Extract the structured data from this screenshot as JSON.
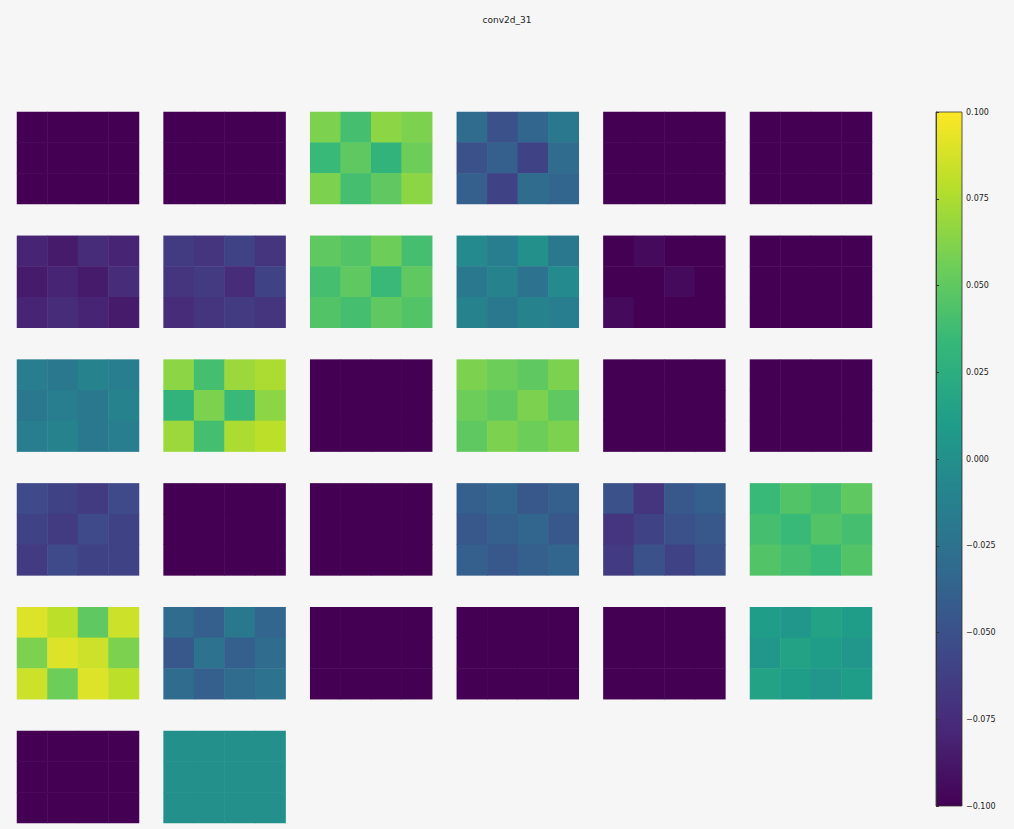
{
  "chart_data": {
    "type": "heatmap_grid",
    "title": "conv2d_31",
    "panels": [
      [
        [
          -0.1,
          -0.1,
          -0.1,
          -0.1
        ],
        [
          -0.1,
          -0.1,
          -0.1,
          -0.1
        ],
        [
          -0.1,
          -0.1,
          -0.1,
          -0.1
        ]
      ],
      [
        [
          -0.1,
          -0.1,
          -0.1,
          -0.1
        ],
        [
          -0.1,
          -0.1,
          -0.1,
          -0.1
        ],
        [
          -0.1,
          -0.1,
          -0.1,
          -0.1
        ]
      ],
      [
        [
          0.06,
          0.04,
          0.065,
          0.06
        ],
        [
          0.035,
          0.05,
          0.03,
          0.055
        ],
        [
          0.06,
          0.04,
          0.05,
          0.065
        ]
      ],
      [
        [
          -0.03,
          -0.05,
          -0.035,
          -0.02
        ],
        [
          -0.05,
          -0.04,
          -0.06,
          -0.03
        ],
        [
          -0.04,
          -0.06,
          -0.03,
          -0.035
        ]
      ],
      [
        [
          -0.1,
          -0.1,
          -0.1,
          -0.1
        ],
        [
          -0.1,
          -0.1,
          -0.1,
          -0.1
        ],
        [
          -0.1,
          -0.1,
          -0.1,
          -0.1
        ]
      ],
      [
        [
          -0.1,
          -0.1,
          -0.1,
          -0.1
        ],
        [
          -0.1,
          -0.1,
          -0.1,
          -0.1
        ],
        [
          -0.1,
          -0.1,
          -0.1,
          -0.1
        ]
      ],
      [
        [
          -0.08,
          -0.085,
          -0.075,
          -0.08
        ],
        [
          -0.085,
          -0.08,
          -0.085,
          -0.075
        ],
        [
          -0.08,
          -0.075,
          -0.08,
          -0.085
        ]
      ],
      [
        [
          -0.065,
          -0.07,
          -0.06,
          -0.07
        ],
        [
          -0.07,
          -0.065,
          -0.075,
          -0.06
        ],
        [
          -0.075,
          -0.07,
          -0.065,
          -0.07
        ]
      ],
      [
        [
          0.05,
          0.045,
          0.055,
          0.04
        ],
        [
          0.04,
          0.05,
          0.035,
          0.05
        ],
        [
          0.045,
          0.04,
          0.05,
          0.045
        ]
      ],
      [
        [
          -0.005,
          -0.015,
          0.0,
          -0.02
        ],
        [
          -0.02,
          -0.01,
          -0.025,
          -0.005
        ],
        [
          -0.01,
          -0.02,
          -0.01,
          -0.015
        ]
      ],
      [
        [
          -0.1,
          -0.095,
          -0.1,
          -0.1
        ],
        [
          -0.1,
          -0.1,
          -0.095,
          -0.1
        ],
        [
          -0.095,
          -0.1,
          -0.1,
          -0.1
        ]
      ],
      [
        [
          -0.1,
          -0.1,
          -0.1,
          -0.1
        ],
        [
          -0.1,
          -0.1,
          -0.1,
          -0.1
        ],
        [
          -0.1,
          -0.1,
          -0.1,
          -0.1
        ]
      ],
      [
        [
          -0.015,
          -0.02,
          -0.01,
          -0.015
        ],
        [
          -0.02,
          -0.015,
          -0.02,
          -0.01
        ],
        [
          -0.015,
          -0.01,
          -0.02,
          -0.015
        ]
      ],
      [
        [
          0.065,
          0.04,
          0.07,
          0.075
        ],
        [
          0.03,
          0.06,
          0.035,
          0.065
        ],
        [
          0.07,
          0.04,
          0.075,
          0.08
        ]
      ],
      [
        [
          -0.1,
          -0.1,
          -0.1,
          -0.1
        ],
        [
          -0.1,
          -0.1,
          -0.1,
          -0.1
        ],
        [
          -0.1,
          -0.1,
          -0.1,
          -0.1
        ]
      ],
      [
        [
          0.06,
          0.055,
          0.05,
          0.06
        ],
        [
          0.055,
          0.05,
          0.06,
          0.05
        ],
        [
          0.05,
          0.06,
          0.055,
          0.06
        ]
      ],
      [
        [
          -0.1,
          -0.1,
          -0.1,
          -0.1
        ],
        [
          -0.1,
          -0.1,
          -0.1,
          -0.1
        ],
        [
          -0.1,
          -0.1,
          -0.1,
          -0.1
        ]
      ],
      [
        [
          -0.1,
          -0.1,
          -0.1,
          -0.1
        ],
        [
          -0.1,
          -0.1,
          -0.1,
          -0.1
        ],
        [
          -0.1,
          -0.1,
          -0.1,
          -0.1
        ]
      ],
      [
        [
          -0.055,
          -0.06,
          -0.065,
          -0.055
        ],
        [
          -0.06,
          -0.065,
          -0.055,
          -0.06
        ],
        [
          -0.065,
          -0.055,
          -0.06,
          -0.06
        ]
      ],
      [
        [
          -0.1,
          -0.1,
          -0.1,
          -0.1
        ],
        [
          -0.1,
          -0.1,
          -0.1,
          -0.1
        ],
        [
          -0.1,
          -0.1,
          -0.1,
          -0.1
        ]
      ],
      [
        [
          -0.1,
          -0.1,
          -0.1,
          -0.1
        ],
        [
          -0.1,
          -0.1,
          -0.1,
          -0.1
        ],
        [
          -0.1,
          -0.1,
          -0.1,
          -0.1
        ]
      ],
      [
        [
          -0.04,
          -0.035,
          -0.045,
          -0.04
        ],
        [
          -0.045,
          -0.04,
          -0.035,
          -0.045
        ],
        [
          -0.04,
          -0.045,
          -0.04,
          -0.035
        ]
      ],
      [
        [
          -0.05,
          -0.07,
          -0.045,
          -0.04
        ],
        [
          -0.07,
          -0.06,
          -0.05,
          -0.045
        ],
        [
          -0.065,
          -0.05,
          -0.06,
          -0.05
        ]
      ],
      [
        [
          0.035,
          0.045,
          0.04,
          0.05
        ],
        [
          0.04,
          0.035,
          0.045,
          0.04
        ],
        [
          0.045,
          0.04,
          0.035,
          0.045
        ]
      ],
      [
        [
          0.09,
          0.08,
          0.05,
          0.085
        ],
        [
          0.06,
          0.09,
          0.085,
          0.06
        ],
        [
          0.085,
          0.055,
          0.09,
          0.08
        ]
      ],
      [
        [
          -0.03,
          -0.04,
          -0.02,
          -0.035
        ],
        [
          -0.045,
          -0.025,
          -0.04,
          -0.03
        ],
        [
          -0.03,
          -0.04,
          -0.03,
          -0.025
        ]
      ],
      [
        [
          -0.1,
          -0.1,
          -0.1,
          -0.1
        ],
        [
          -0.1,
          -0.1,
          -0.1,
          -0.1
        ],
        [
          -0.1,
          -0.1,
          -0.1,
          -0.1
        ]
      ],
      [
        [
          -0.1,
          -0.1,
          -0.1,
          -0.1
        ],
        [
          -0.1,
          -0.1,
          -0.1,
          -0.1
        ],
        [
          -0.1,
          -0.1,
          -0.1,
          -0.1
        ]
      ],
      [
        [
          -0.1,
          -0.1,
          -0.1,
          -0.1
        ],
        [
          -0.1,
          -0.1,
          -0.1,
          -0.1
        ],
        [
          -0.1,
          -0.1,
          -0.1,
          -0.1
        ]
      ],
      [
        [
          0.01,
          0.005,
          0.015,
          0.01
        ],
        [
          0.005,
          0.015,
          0.01,
          0.005
        ],
        [
          0.015,
          0.01,
          0.005,
          0.01
        ]
      ],
      [
        [
          -0.1,
          -0.1,
          -0.1,
          -0.1
        ],
        [
          -0.1,
          -0.1,
          -0.1,
          -0.1
        ],
        [
          -0.1,
          -0.1,
          -0.1,
          -0.1
        ]
      ],
      [
        [
          0.0,
          0.0,
          0.0,
          0.0
        ],
        [
          0.0,
          0.0,
          0.0,
          0.0
        ],
        [
          0.0,
          0.0,
          0.0,
          0.0
        ]
      ]
    ],
    "colorbar": {
      "range": [
        -0.1,
        0.1
      ],
      "ticks": [
        {
          "value": -0.1,
          "label": "−0.100"
        },
        {
          "value": -0.075,
          "label": "−0.075"
        },
        {
          "value": -0.05,
          "label": "−0.050"
        },
        {
          "value": -0.025,
          "label": "−0.025"
        },
        {
          "value": 0.0,
          "label": "0.000"
        },
        {
          "value": 0.025,
          "label": "0.025"
        },
        {
          "value": 0.05,
          "label": "0.050"
        },
        {
          "value": 0.075,
          "label": "0.075"
        },
        {
          "value": 0.1,
          "label": "0.100"
        }
      ]
    },
    "tick_labels": "y"
  }
}
